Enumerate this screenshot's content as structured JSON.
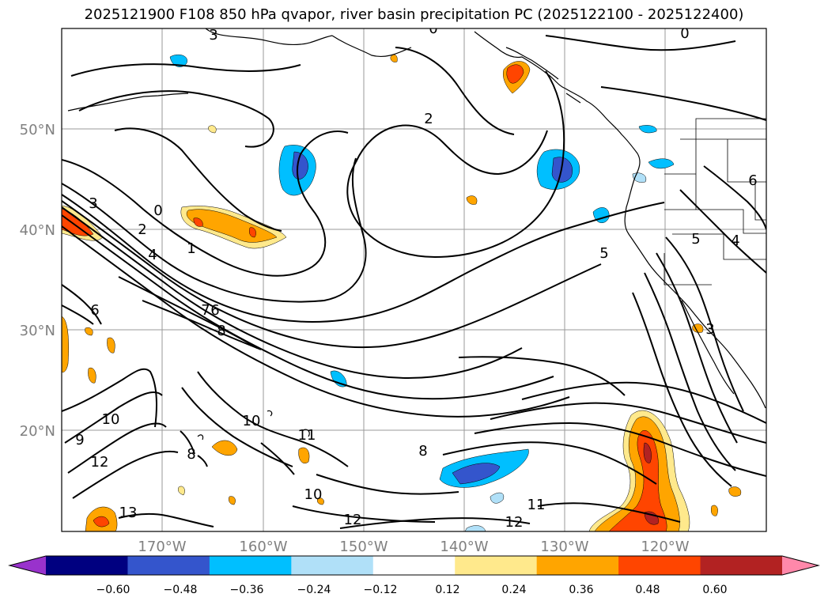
{
  "title": "2025121900 F108 850 hPa qvapor, river basin precipitation PC (2025122100 - 2025122400)",
  "lat_labels": [
    "50°N",
    "40°N",
    "30°N",
    "20°N"
  ],
  "lon_labels": [
    "170°W",
    "160°W",
    "150°W",
    "140°W",
    "130°W",
    "120°W"
  ],
  "contour_labels": [
    "0",
    "1",
    "2",
    "3",
    "4",
    "5",
    "6",
    "7",
    "8",
    "9",
    "10",
    "11",
    "12",
    "13"
  ],
  "colorbar": {
    "ticks": [
      "−0.60",
      "−0.48",
      "−0.36",
      "−0.24",
      "−0.12",
      "0.12",
      "0.24",
      "0.36",
      "0.48",
      "0.60"
    ],
    "colors": [
      "#9932cc",
      "#000080",
      "#3455cc",
      "#00bfff",
      "#b0e0f8",
      "#ffffff",
      "#ffe98c",
      "#ffa500",
      "#ff4500",
      "#b22222",
      "#ff88aa"
    ]
  }
}
